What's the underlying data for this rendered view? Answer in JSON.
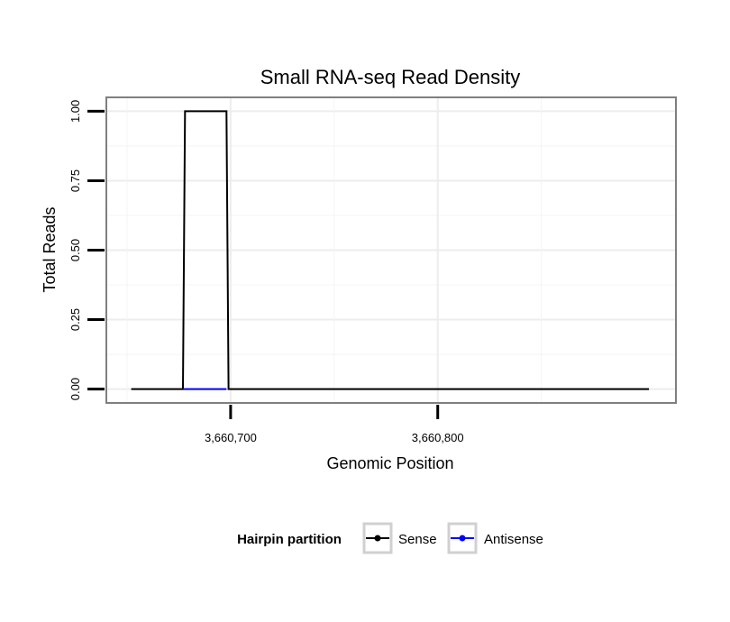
{
  "chart_data": {
    "type": "line",
    "title": "Small RNA-seq Read Density",
    "xlabel": "Genomic Position",
    "ylabel": "Total Reads",
    "xlim": [
      3660640,
      3660915
    ],
    "ylim": [
      -0.05,
      1.05
    ],
    "x_ticks": [
      {
        "value": 3660700,
        "label": "3,660,700"
      },
      {
        "value": 3660800,
        "label": "3,660,800"
      }
    ],
    "y_ticks": [
      {
        "value": 0,
        "label": "0.00"
      },
      {
        "value": 0.25,
        "label": "0.25"
      },
      {
        "value": 0.5,
        "label": "0.50"
      },
      {
        "value": 0.75,
        "label": "0.75"
      },
      {
        "value": 1,
        "label": "1.00"
      }
    ],
    "grid": true,
    "legend": {
      "title": "Hairpin partition",
      "position": "bottom"
    },
    "series": [
      {
        "name": "Sense",
        "color": "#000000",
        "x": [
          3660652,
          3660677,
          3660678,
          3660698,
          3660699,
          3660902
        ],
        "values": [
          0,
          0,
          1,
          1,
          0,
          0
        ]
      },
      {
        "name": "Antisense",
        "color": "#0000ff",
        "x": [
          3660677,
          3660698
        ],
        "values": [
          0,
          0
        ]
      }
    ]
  }
}
